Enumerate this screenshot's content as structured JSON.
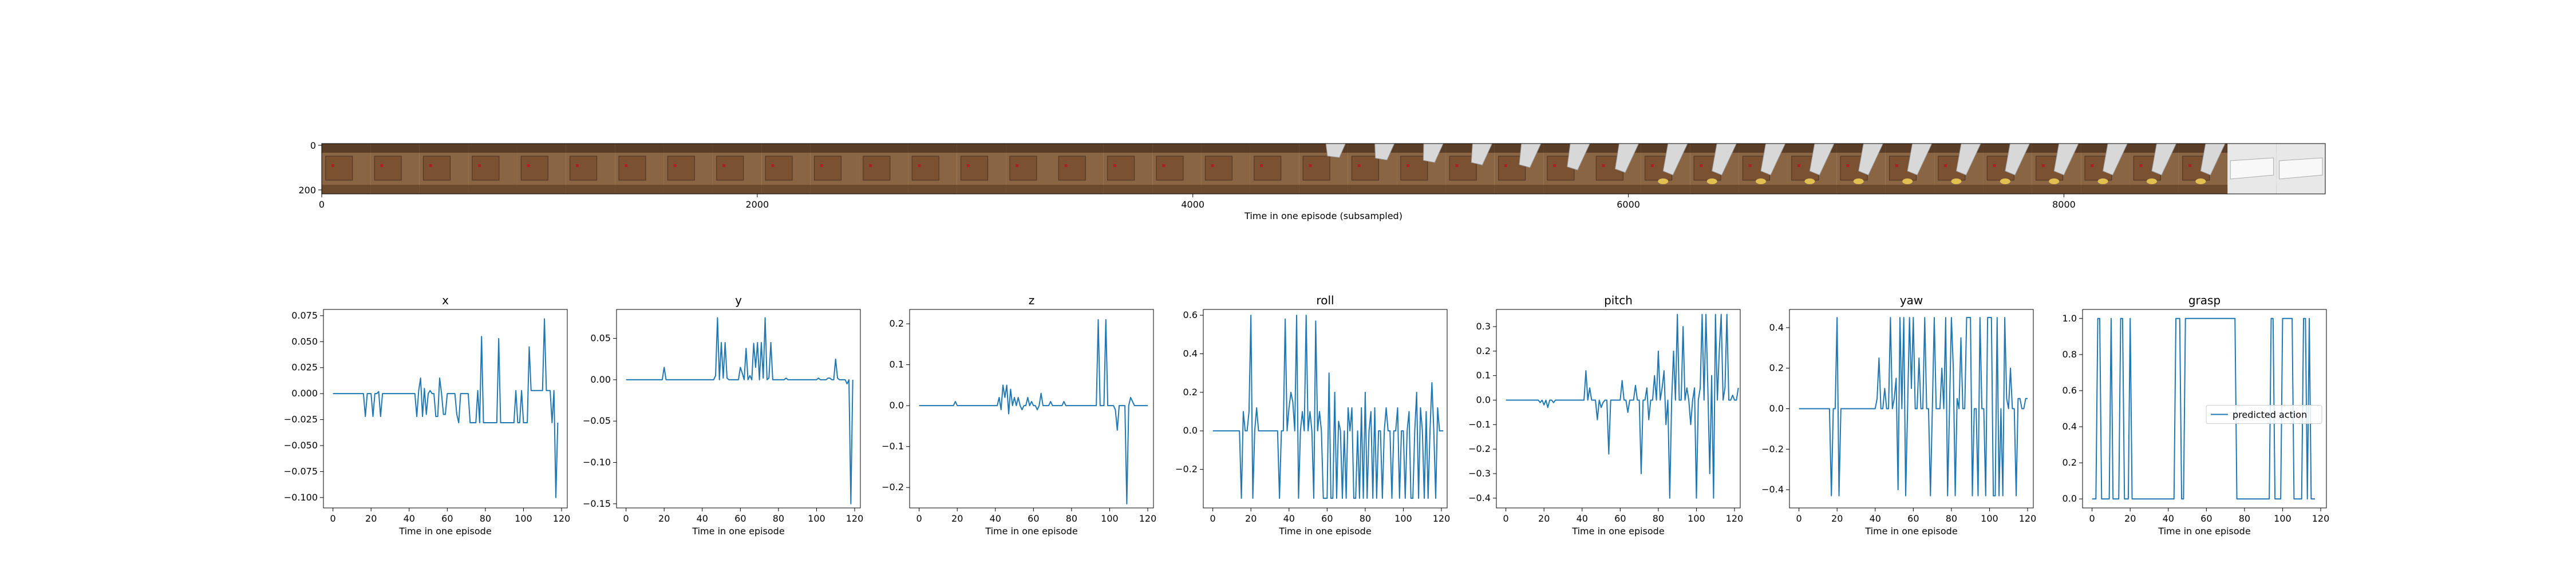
{
  "filmstrip": {
    "xlabel": "Time in one episode (subsampled)",
    "xticks": [
      "0",
      "2000",
      "4000",
      "6000",
      "8000"
    ],
    "xtick_values": [
      0,
      2000,
      4000,
      6000,
      8000
    ],
    "xlim": [
      0,
      9200
    ],
    "yticks": [
      "0",
      "200"
    ],
    "frame_count": 41
  },
  "colors": {
    "line": "#1f77b4",
    "wood": "#8a6544",
    "wood_dark": "#5a3d26",
    "gripper": "#d8d8d8",
    "object": "#e0c050"
  },
  "chart_data": [
    {
      "type": "line",
      "title": "x",
      "xlabel": "Time in one episode",
      "ylabel": "",
      "xlim": [
        -5,
        123
      ],
      "ylim": [
        -0.11,
        0.081
      ],
      "xticks": [
        0,
        20,
        40,
        60,
        80,
        100,
        120
      ],
      "yticks": [
        -0.1,
        -0.075,
        -0.05,
        -0.025,
        0.0,
        0.025,
        0.05,
        0.075
      ],
      "ytick_labels": [
        "−0.100",
        "−0.075",
        "−0.050",
        "−0.025",
        "0.000",
        "0.025",
        "0.050",
        "0.075"
      ],
      "series": [
        {
          "values": [
            0,
            0,
            0,
            0,
            0,
            0,
            0,
            0,
            0,
            0,
            0,
            0,
            0,
            0,
            0,
            0,
            0,
            -0.022,
            0,
            0,
            0,
            -0.022,
            0,
            0,
            0.002,
            -0.022,
            0,
            0,
            0,
            0,
            0,
            0,
            0,
            0,
            0,
            0,
            0,
            0,
            0,
            0,
            0,
            0,
            0,
            0,
            -0.022,
            0.003,
            0.015,
            -0.022,
            0.005,
            -0.02,
            0,
            0.003,
            0,
            0,
            -0.022,
            -0.022,
            0.015,
            0,
            -0.02,
            -0.02,
            0,
            0,
            0,
            0,
            0,
            -0.02,
            -0.028,
            0,
            0,
            0,
            0,
            0,
            -0.028,
            -0.028,
            -0.028,
            -0.028,
            0.003,
            -0.028,
            0.055,
            -0.028,
            -0.028,
            -0.028,
            -0.028,
            -0.028,
            -0.028,
            -0.028,
            -0.028,
            0.053,
            -0.028,
            -0.028,
            -0.028,
            -0.028,
            -0.028,
            -0.028,
            -0.028,
            -0.028,
            0.003,
            -0.028,
            -0.028,
            0.003,
            -0.028,
            -0.028,
            -0.028,
            0.045,
            0.003,
            0.003,
            0.003,
            0.003,
            0.003,
            0.003,
            0.003,
            0.072,
            0.003,
            0.003,
            0.003,
            -0.028,
            0.003,
            -0.1,
            -0.028
          ]
        }
      ]
    },
    {
      "type": "line",
      "title": "y",
      "xlabel": "Time in one episode",
      "ylabel": "",
      "xlim": [
        -5,
        123
      ],
      "ylim": [
        -0.155,
        0.085
      ],
      "xticks": [
        0,
        20,
        40,
        60,
        80,
        100,
        120
      ],
      "yticks": [
        -0.15,
        -0.1,
        -0.05,
        0.0,
        0.05
      ],
      "ytick_labels": [
        "−0.15",
        "−0.10",
        "−0.05",
        "0.00",
        "0.05"
      ],
      "series": [
        {
          "values": [
            0,
            0,
            0,
            0,
            0,
            0,
            0,
            0,
            0,
            0,
            0,
            0,
            0,
            0,
            0,
            0,
            0,
            0,
            0,
            0,
            0.015,
            0,
            0,
            0,
            0,
            0,
            0,
            0,
            0,
            0,
            0,
            0,
            0,
            0,
            0,
            0,
            0,
            0,
            0,
            0,
            0,
            0,
            0,
            0,
            0,
            0,
            0,
            0.005,
            0.075,
            0,
            0.045,
            0.002,
            0.045,
            0.002,
            0,
            0,
            0,
            0,
            0,
            0,
            0.015,
            0.008,
            0,
            0.038,
            0,
            0.005,
            0,
            0.044,
            0.015,
            0.045,
            0,
            0.045,
            0.002,
            0.075,
            0,
            0.002,
            0.045,
            0,
            0,
            0,
            0,
            0,
            0,
            0,
            0.002,
            0,
            0,
            0,
            0,
            0,
            0,
            0,
            0,
            0,
            0,
            0,
            0,
            0,
            0,
            0,
            0,
            0.002,
            0,
            0,
            0,
            0,
            0.002,
            0.002,
            0,
            0,
            0.025,
            0.002,
            0,
            0,
            0,
            0,
            -0.005,
            0,
            -0.15,
            0
          ]
        }
      ]
    },
    {
      "type": "line",
      "title": "z",
      "xlabel": "Time in one episode",
      "ylabel": "",
      "xlim": [
        -5,
        123
      ],
      "ylim": [
        -0.25,
        0.235
      ],
      "xticks": [
        0,
        20,
        40,
        60,
        80,
        100,
        120
      ],
      "yticks": [
        -0.2,
        -0.1,
        0.0,
        0.1,
        0.2
      ],
      "ytick_labels": [
        "−0.2",
        "−0.1",
        "0.0",
        "0.1",
        "0.2"
      ],
      "series": [
        {
          "values": [
            0,
            0,
            0,
            0,
            0,
            0,
            0,
            0,
            0,
            0,
            0,
            0,
            0,
            0,
            0,
            0,
            0,
            0,
            0,
            0.01,
            0,
            0,
            0,
            0,
            0,
            0,
            0,
            0,
            0,
            0,
            0,
            0,
            0,
            0,
            0,
            0,
            0,
            0,
            0,
            0,
            0,
            0,
            0.02,
            -0.01,
            0.05,
            0.02,
            0.05,
            -0.02,
            0.04,
            0,
            0.02,
            0,
            0.02,
            0,
            -0.01,
            0,
            0,
            0.02,
            0,
            0.01,
            0,
            0,
            -0.01,
            0,
            0.03,
            0,
            0,
            0,
            0,
            0.01,
            0,
            0,
            0,
            0,
            0,
            0,
            0.01,
            0,
            0,
            0,
            0,
            0,
            0,
            0,
            0,
            0,
            0,
            0,
            0,
            0,
            0,
            0,
            0,
            0,
            0.21,
            0,
            0,
            0,
            0.21,
            0,
            0,
            0,
            0,
            -0.01,
            -0.06,
            0,
            0,
            0,
            0,
            -0.24,
            0,
            0.02,
            0.01,
            0,
            0,
            0,
            0,
            0,
            0,
            0,
            0
          ]
        }
      ]
    },
    {
      "type": "line",
      "title": "roll",
      "xlabel": "Time in one episode",
      "ylabel": "",
      "xlim": [
        -5,
        123
      ],
      "ylim": [
        -0.4,
        0.63
      ],
      "xticks": [
        0,
        20,
        40,
        60,
        80,
        100,
        120
      ],
      "yticks": [
        -0.2,
        0.0,
        0.2,
        0.4,
        0.6
      ],
      "ytick_labels": [
        "−0.2",
        "0.0",
        "0.2",
        "0.4",
        "0.6"
      ],
      "series": [
        {
          "values": [
            0,
            0,
            0,
            0,
            0,
            0,
            0,
            0,
            0,
            0,
            0,
            0,
            0,
            0,
            0,
            -0.35,
            0.1,
            0,
            0,
            0.1,
            0.6,
            -0.35,
            0,
            0.12,
            0,
            0,
            0,
            0,
            0,
            0,
            0,
            0,
            0,
            0,
            0,
            -0.35,
            0,
            0,
            0.58,
            0,
            0.12,
            0.2,
            0.15,
            0,
            0.6,
            -0.35,
            0,
            0.1,
            0,
            0.6,
            0,
            0.1,
            0,
            -0.35,
            0.57,
            0,
            0.1,
            0,
            -0.35,
            -0.35,
            -0.35,
            0.3,
            -0.35,
            -0.35,
            0.2,
            -0.35,
            0.05,
            0,
            -0.35,
            0,
            -0.35,
            0.12,
            0,
            0.12,
            -0.35,
            -0.35,
            0,
            -0.35,
            0.12,
            -0.35,
            0.2,
            -0.35,
            0,
            0.1,
            -0.35,
            0.12,
            -0.35,
            0,
            0,
            -0.35,
            0,
            0.12,
            0,
            0,
            -0.35,
            0,
            0,
            0.12,
            -0.35,
            0,
            0,
            -0.35,
            0,
            0.1,
            -0.35,
            -0.35,
            0,
            0.2,
            -0.35,
            0.12,
            0,
            -0.35,
            0.1,
            -0.35,
            0,
            0.25,
            0,
            -0.35,
            0.12,
            0,
            0,
            0
          ]
        }
      ]
    },
    {
      "type": "line",
      "title": "pitch",
      "xlabel": "Time in one episode",
      "ylabel": "",
      "xlim": [
        -5,
        123
      ],
      "ylim": [
        -0.44,
        0.37
      ],
      "xticks": [
        0,
        20,
        40,
        60,
        80,
        100,
        120
      ],
      "yticks": [
        -0.4,
        -0.3,
        -0.2,
        -0.1,
        0.0,
        0.1,
        0.2,
        0.3
      ],
      "ytick_labels": [
        "−0.4",
        "−0.3",
        "−0.2",
        "−0.1",
        "0.0",
        "0.1",
        "0.2",
        "0.3"
      ],
      "series": [
        {
          "values": [
            0,
            0,
            0,
            0,
            0,
            0,
            0,
            0,
            0,
            0,
            0,
            0,
            0,
            0,
            0,
            0,
            0,
            0,
            -0.01,
            0,
            -0.02,
            0,
            -0.03,
            0,
            0,
            -0.01,
            0,
            0,
            0,
            0,
            0,
            0,
            0,
            0,
            0,
            0,
            0,
            0,
            0,
            0,
            0,
            0,
            0.12,
            0,
            0.05,
            0,
            0,
            0,
            -0.08,
            0,
            -0.03,
            -0.01,
            0,
            0,
            -0.22,
            0,
            0,
            0,
            0,
            0,
            0,
            0.08,
            0,
            0,
            -0.05,
            0,
            0,
            0,
            0.06,
            0,
            0,
            -0.3,
            0,
            0,
            0.05,
            -0.08,
            0,
            0,
            0.1,
            0,
            0.2,
            0,
            0.05,
            0.12,
            -0.1,
            0,
            -0.4,
            0,
            0.2,
            0,
            0.35,
            0,
            0,
            0.3,
            0,
            0.05,
            0,
            -0.1,
            0,
            0.05,
            -0.4,
            0,
            0.05,
            0.35,
            0,
            0.35,
            0.05,
            -0.3,
            0.1,
            -0.4,
            0.35,
            0,
            0.2,
            0.35,
            0,
            0.05,
            0.35,
            0,
            0,
            0.02,
            0,
            0,
            0.05
          ]
        }
      ]
    },
    {
      "type": "line",
      "title": "yaw",
      "xlabel": "Time in one episode",
      "ylabel": "",
      "xlim": [
        -5,
        123
      ],
      "ylim": [
        -0.49,
        0.49
      ],
      "xticks": [
        0,
        20,
        40,
        60,
        80,
        100,
        120
      ],
      "yticks": [
        -0.4,
        -0.2,
        0.0,
        0.2,
        0.4
      ],
      "ytick_labels": [
        "−0.4",
        "−0.2",
        "0.0",
        "0.2",
        "0.4"
      ],
      "series": [
        {
          "values": [
            0,
            0,
            0,
            0,
            0,
            0,
            0,
            0,
            0,
            0,
            0,
            0,
            0,
            0,
            0,
            0,
            0,
            -0.43,
            0,
            0,
            0.45,
            -0.43,
            0,
            0,
            0,
            0,
            0,
            0,
            0,
            0,
            0,
            0,
            0,
            0,
            0,
            0,
            0,
            0,
            0,
            0,
            0,
            0.05,
            0.25,
            0,
            0,
            0.1,
            0,
            0,
            0.45,
            0,
            0.05,
            0.15,
            -0.4,
            0.45,
            0,
            0.45,
            -0.43,
            0,
            0.45,
            0.1,
            0.45,
            0,
            0,
            0.25,
            0,
            0,
            0.45,
            0,
            0,
            -0.43,
            0,
            0.45,
            0,
            0,
            0,
            0.2,
            0,
            0.45,
            -0.43,
            0,
            0.45,
            0.2,
            -0.43,
            0.05,
            0,
            0.35,
            0,
            0,
            0.45,
            0.45,
            0.45,
            -0.43,
            0,
            0,
            -0.43,
            0.45,
            0,
            0,
            -0.43,
            0.45,
            0.45,
            0.45,
            -0.43,
            -0.43,
            0.45,
            -0.43,
            0,
            -0.43,
            0.45,
            0.05,
            0,
            0.2,
            0,
            0,
            -0.43,
            0.05,
            0.05,
            0,
            0,
            0.05,
            0.05
          ]
        }
      ]
    },
    {
      "type": "line",
      "title": "grasp",
      "xlabel": "Time in one episode",
      "ylabel": "",
      "xlim": [
        -5,
        123
      ],
      "ylim": [
        -0.05,
        1.05
      ],
      "xticks": [
        0,
        20,
        40,
        60,
        80,
        100,
        120
      ],
      "yticks": [
        0.0,
        0.2,
        0.4,
        0.6,
        0.8,
        1.0
      ],
      "ytick_labels": [
        "0.0",
        "0.2",
        "0.4",
        "0.6",
        "0.8",
        "1.0"
      ],
      "legend": {
        "entries": [
          "predicted action"
        ],
        "placement": "center-right"
      },
      "series": [
        {
          "name": "predicted action",
          "values": [
            0,
            0,
            0,
            1,
            1,
            0,
            0,
            0,
            0,
            0,
            1,
            0,
            0,
            0,
            0,
            1,
            1,
            0,
            0,
            0,
            1,
            0,
            0,
            0,
            0,
            0,
            0,
            0,
            0,
            0,
            0,
            0,
            0,
            0,
            0,
            0,
            0,
            0,
            0,
            0,
            0,
            0,
            0,
            0,
            1,
            1,
            1,
            0,
            0,
            1,
            1,
            1,
            1,
            1,
            1,
            1,
            1,
            1,
            1,
            1,
            1,
            1,
            1,
            1,
            1,
            1,
            1,
            1,
            1,
            1,
            1,
            1,
            1,
            1,
            1,
            1,
            0,
            0,
            0,
            0,
            0,
            0,
            0,
            0,
            0,
            0,
            0,
            0,
            0,
            0,
            0,
            0,
            0,
            0,
            1,
            1,
            0,
            0,
            0,
            0,
            1,
            1,
            1,
            1,
            1,
            1,
            0,
            0,
            0,
            0,
            0,
            1,
            1,
            0,
            1,
            0,
            0,
            0
          ]
        }
      ]
    }
  ]
}
